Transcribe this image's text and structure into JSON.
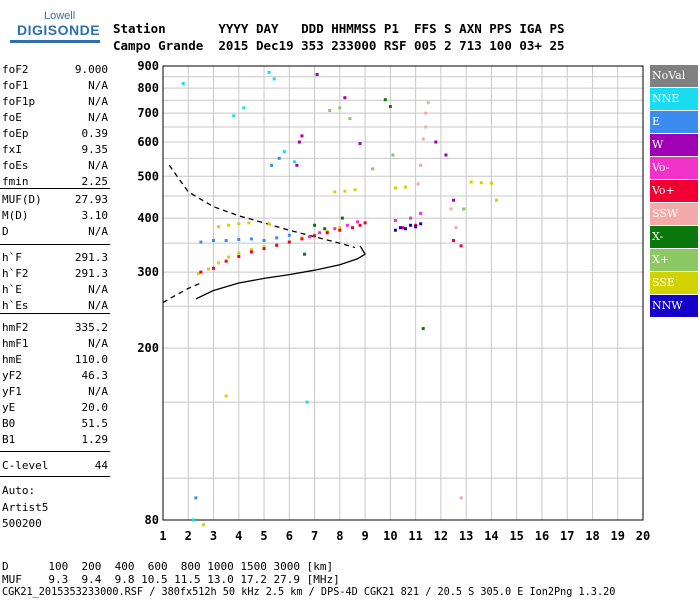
{
  "logo": {
    "line1": "Lowell",
    "line2": "DIGISONDE"
  },
  "header": {
    "row1": "Station       YYYY DAY   DDD HHMMSS P1  FFS S AXN PPS IGA PS",
    "row2": "Campo Grande  2015 Dec19 353 233000 RSF 005 2 713 100 03+ 25"
  },
  "params": [
    {
      "key": "foF2",
      "value": "9.000"
    },
    {
      "key": "foF1",
      "value": "N/A"
    },
    {
      "key": "foF1p",
      "value": "N/A"
    },
    {
      "key": "foE",
      "value": "N/A"
    },
    {
      "key": "foEp",
      "value": "0.39"
    },
    {
      "key": "fxI",
      "value": "9.35"
    },
    {
      "key": "foEs",
      "value": "N/A"
    },
    {
      "key": "fmin",
      "value": "2.25"
    },
    {
      "key": "MUF(D)",
      "value": "27.93"
    },
    {
      "key": "M(D)",
      "value": "3.10"
    },
    {
      "key": "D",
      "value": "N/A"
    },
    {
      "key": "h`F",
      "value": "291.3"
    },
    {
      "key": "h`F2",
      "value": "291.3"
    },
    {
      "key": "h`E",
      "value": "N/A"
    },
    {
      "key": "h`Es",
      "value": "N/A"
    },
    {
      "key": "hmF2",
      "value": "335.2"
    },
    {
      "key": "hmF1",
      "value": "N/A"
    },
    {
      "key": "hmE",
      "value": "110.0"
    },
    {
      "key": "yF2",
      "value": "46.3"
    },
    {
      "key": "yF1",
      "value": "N/A"
    },
    {
      "key": "yE",
      "value": "20.0"
    },
    {
      "key": "B0",
      "value": "51.5"
    },
    {
      "key": "B1",
      "value": "1.29"
    },
    {
      "key": "C-level",
      "value": "44"
    }
  ],
  "autoscale": {
    "line1": "Auto:",
    "line2": "Artist5",
    "line3": "500200"
  },
  "footer": {
    "distance_row": "D      100  200  400  600  800 1000 1500 3000 [km]",
    "muf_row": "MUF    9.3  9.4  9.8 10.5 11.5 13.0 17.2 27.9 [MHz]",
    "file_row": "CGK21_2015353233000.RSF / 380fx512h 50 kHz 2.5 km / DPS-4D CGK21 821 / 20.5 S 305.0 E Ion2Png 1.3.20"
  },
  "legend": [
    {
      "label": "NoVal",
      "color": "#808080"
    },
    {
      "label": "NNE",
      "color": "#19dcf0"
    },
    {
      "label": "E",
      "color": "#3c8cf0"
    },
    {
      "label": "W",
      "color": "#a000b4"
    },
    {
      "label": "Vo-",
      "color": "#f032c8"
    },
    {
      "label": "Vo+",
      "color": "#f00032"
    },
    {
      "label": "SSW",
      "color": "#f5aaaa"
    },
    {
      "label": "X-",
      "color": "#0a780a"
    },
    {
      "label": "X+",
      "color": "#8cc864"
    },
    {
      "label": "SSE",
      "color": "#d2d200"
    },
    {
      "label": "NNW",
      "color": "#1400c8"
    }
  ],
  "chart_data": {
    "type": "scatter",
    "title": "",
    "xlabel": "",
    "ylabel": "",
    "xlim": [
      1,
      20
    ],
    "ylim": [
      80,
      900
    ],
    "x_ticks": [
      1,
      2,
      3,
      4,
      5,
      6,
      7,
      8,
      9,
      10,
      11,
      12,
      13,
      14,
      15,
      16,
      17,
      18,
      19,
      20
    ],
    "y_ticks": [
      80,
      200,
      300,
      400,
      500,
      600,
      700,
      800,
      900
    ],
    "grid": true,
    "y_scale": "log",
    "series": [
      {
        "color": "#d2d200",
        "points": [
          [
            2.4,
            298
          ],
          [
            2.8,
            305
          ],
          [
            3.2,
            315
          ],
          [
            3.6,
            325
          ],
          [
            4,
            332
          ],
          [
            4.5,
            338
          ],
          [
            5,
            343
          ],
          [
            5.5,
            347
          ],
          [
            6,
            352
          ],
          [
            6.5,
            360
          ],
          [
            7,
            365
          ],
          [
            7.5,
            372
          ],
          [
            8,
            380
          ],
          [
            3.2,
            382
          ],
          [
            3.6,
            385
          ],
          [
            4,
            388
          ],
          [
            4.4,
            390
          ],
          [
            5.2,
            388
          ],
          [
            7.8,
            460
          ],
          [
            8.2,
            462
          ],
          [
            8.6,
            465
          ],
          [
            10.2,
            470
          ],
          [
            10.6,
            472
          ],
          [
            13.2,
            485
          ],
          [
            13.6,
            483
          ],
          [
            14,
            482
          ],
          [
            14.2,
            440
          ],
          [
            3.5,
            155
          ],
          [
            2.6,
            78
          ]
        ]
      },
      {
        "color": "#3c8cf0",
        "points": [
          [
            2.5,
            352
          ],
          [
            3,
            355
          ],
          [
            3.5,
            355
          ],
          [
            4,
            357
          ],
          [
            4.5,
            358
          ],
          [
            5,
            355
          ],
          [
            5.5,
            360
          ],
          [
            6,
            365
          ],
          [
            2.3,
            90
          ],
          [
            5.3,
            530
          ],
          [
            5.6,
            550
          ]
        ]
      },
      {
        "color": "#f00032",
        "points": [
          [
            2.5,
            300
          ],
          [
            3,
            306
          ],
          [
            3.5,
            318
          ],
          [
            4,
            326
          ],
          [
            4.5,
            334
          ],
          [
            5,
            340
          ],
          [
            5.5,
            346
          ],
          [
            6,
            352
          ],
          [
            6.5,
            358
          ],
          [
            7,
            364
          ],
          [
            7.5,
            370
          ],
          [
            8,
            375
          ],
          [
            8.5,
            380
          ],
          [
            8.8,
            385
          ],
          [
            9,
            390
          ],
          [
            10.5,
            380
          ],
          [
            11,
            385
          ],
          [
            12.5,
            355
          ],
          [
            12.8,
            345
          ]
        ]
      },
      {
        "color": "#f032c8",
        "points": [
          [
            6.8,
            362
          ],
          [
            7.2,
            370
          ],
          [
            7.8,
            378
          ],
          [
            8.3,
            385
          ],
          [
            8.7,
            392
          ],
          [
            10.2,
            395
          ],
          [
            10.8,
            400
          ],
          [
            11.2,
            410
          ]
        ]
      },
      {
        "color": "#f5aaaa",
        "points": [
          [
            11.3,
            610
          ],
          [
            11.4,
            650
          ],
          [
            11.4,
            700
          ],
          [
            11.5,
            740
          ],
          [
            11.2,
            530
          ],
          [
            11.1,
            480
          ],
          [
            12.4,
            420
          ],
          [
            12.6,
            380
          ],
          [
            12.8,
            90
          ]
        ]
      },
      {
        "color": "#1400c8",
        "points": [
          [
            10.2,
            375
          ],
          [
            10.4,
            380
          ],
          [
            10.6,
            378
          ],
          [
            10.8,
            385
          ],
          [
            11,
            382
          ],
          [
            11.2,
            388
          ]
        ]
      },
      {
        "color": "#0a780a",
        "points": [
          [
            7,
            385
          ],
          [
            7.4,
            378
          ],
          [
            8.1,
            400
          ],
          [
            9.8,
            752
          ],
          [
            10,
            725
          ],
          [
            11.3,
            222
          ],
          [
            6.6,
            330
          ]
        ]
      },
      {
        "color": "#a000b4",
        "points": [
          [
            6.3,
            530
          ],
          [
            6.4,
            600
          ],
          [
            6.5,
            620
          ],
          [
            7.1,
            860
          ],
          [
            8.2,
            760
          ],
          [
            8.8,
            595
          ],
          [
            12.2,
            560
          ],
          [
            11.8,
            600
          ],
          [
            12.5,
            440
          ]
        ]
      },
      {
        "color": "#8cc864",
        "points": [
          [
            7.6,
            710
          ],
          [
            8,
            720
          ],
          [
            8.4,
            680
          ],
          [
            10.1,
            560
          ],
          [
            9.3,
            520
          ],
          [
            12.9,
            420
          ]
        ]
      },
      {
        "color": "#19dcf0",
        "points": [
          [
            5.2,
            870
          ],
          [
            5.4,
            840
          ],
          [
            4.2,
            720
          ],
          [
            3.8,
            690
          ],
          [
            5.8,
            570
          ],
          [
            6.2,
            540
          ],
          [
            1.8,
            820
          ],
          [
            2.2,
            80
          ],
          [
            6.7,
            150
          ]
        ]
      }
    ],
    "curves": [
      {
        "style": "dashed",
        "points": [
          [
            1.25,
            530
          ],
          [
            2,
            460
          ],
          [
            3,
            425
          ],
          [
            4,
            405
          ],
          [
            5,
            390
          ],
          [
            6,
            375
          ],
          [
            7,
            362
          ],
          [
            8,
            350
          ],
          [
            8.6,
            342
          ]
        ]
      },
      {
        "style": "dashed",
        "points": [
          [
            1,
            255
          ],
          [
            1.5,
            265
          ],
          [
            2,
            275
          ],
          [
            2.5,
            283
          ]
        ]
      },
      {
        "style": "solid",
        "points": [
          [
            2.3,
            260
          ],
          [
            3,
            272
          ],
          [
            4,
            283
          ],
          [
            5,
            290
          ],
          [
            6,
            296
          ],
          [
            7,
            303
          ],
          [
            8,
            312
          ],
          [
            8.7,
            322
          ],
          [
            9,
            330
          ],
          [
            8.8,
            345
          ]
        ]
      }
    ]
  }
}
